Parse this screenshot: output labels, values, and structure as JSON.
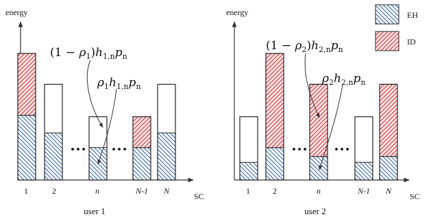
{
  "colors": {
    "eh_hatch": "#2c5fa8",
    "id_hatch": "#d8232a",
    "id_fill": "#fde6e6",
    "axis": "#333333",
    "outline": "#222222"
  },
  "legend": {
    "eh_label": "EH",
    "id_label": "ID"
  },
  "panels": [
    {
      "y_axis_label": "energy",
      "x_axis_label": "SC",
      "caption": "user 1",
      "ticks": [
        "1",
        "2",
        "n",
        "N-1",
        "N"
      ],
      "dots": [
        "…",
        "…"
      ],
      "annotation_top": {
        "prefix": "(1 − ",
        "rho": "ρ",
        "rho_sub": "1",
        "close": ")",
        "h": "h",
        "h_sub": "1,n",
        "p": "p",
        "p_sub": "n"
      },
      "annotation_bottom": {
        "rho": "ρ",
        "rho_sub": "1",
        "h": "h",
        "h_sub": "1,n",
        "p": "p",
        "p_sub": "n"
      },
      "bars": [
        {
          "sc": "1",
          "eh": 0.44,
          "id": 0.42,
          "total": 0.86
        },
        {
          "sc": "2",
          "eh": 0.32,
          "id": 0.0,
          "total": 0.65
        },
        {
          "sc": "n",
          "eh": 0.22,
          "id": 0.0,
          "total": 0.43
        },
        {
          "sc": "N-1",
          "eh": 0.22,
          "id": 0.21,
          "total": 0.43
        },
        {
          "sc": "N",
          "eh": 0.32,
          "id": 0.0,
          "total": 0.65
        }
      ]
    },
    {
      "y_axis_label": "energy",
      "x_axis_label": "SC",
      "caption": "user 2",
      "ticks": [
        "1",
        "2",
        "n",
        "N-1",
        "N"
      ],
      "dots": [
        "…",
        "…"
      ],
      "annotation_top": {
        "prefix": "(1 − ",
        "rho": "ρ",
        "rho_sub": "2",
        "close": ")",
        "h": "h",
        "h_sub": "2,n",
        "p": "p",
        "p_sub": "n"
      },
      "annotation_bottom": {
        "rho": "ρ",
        "rho_sub": "2",
        "h": "h",
        "h_sub": "2,n",
        "p": "p",
        "p_sub": "n"
      },
      "bars": [
        {
          "sc": "1",
          "eh": 0.12,
          "id": 0.0,
          "total": 0.43
        },
        {
          "sc": "2",
          "eh": 0.22,
          "id": 0.64,
          "total": 0.86
        },
        {
          "sc": "n",
          "eh": 0.16,
          "id": 0.49,
          "total": 0.65
        },
        {
          "sc": "N-1",
          "eh": 0.12,
          "id": 0.0,
          "total": 0.43
        },
        {
          "sc": "N",
          "eh": 0.16,
          "id": 0.49,
          "total": 0.65
        }
      ]
    }
  ]
}
